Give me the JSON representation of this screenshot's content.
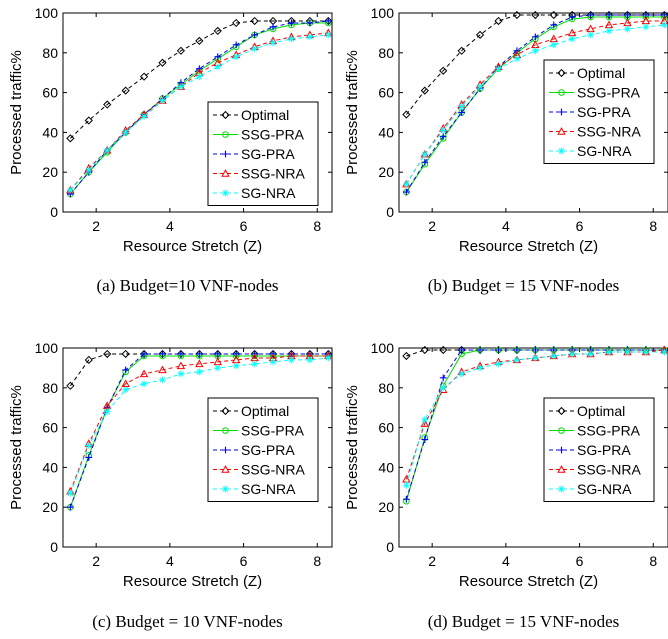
{
  "colors": {
    "optimal": "#000000",
    "ssg_pra": "#00dd00",
    "sg_pra": "#0000ff",
    "ssg_nra": "#ff0000",
    "sg_nra": "#00ffff"
  },
  "chart_data": [
    {
      "type": "line",
      "caption": "(a) Budget=10 VNF-nodes",
      "xlabel": "Resource Stretch (Z)",
      "ylabel": "Processed traffic%",
      "xlim": [
        1.1,
        8.4
      ],
      "ylim": [
        0,
        100
      ],
      "xticks": [
        2,
        4,
        6,
        8
      ],
      "yticks": [
        0,
        20,
        40,
        60,
        80,
        100
      ],
      "grid": false,
      "legend": "bottom-right",
      "x": [
        1.3,
        1.8,
        2.3,
        2.8,
        3.3,
        3.8,
        4.3,
        4.8,
        5.3,
        5.8,
        6.3,
        6.8,
        7.3,
        7.8,
        8.3
      ],
      "series": [
        {
          "name": "Optimal",
          "marker": "diamond",
          "values": [
            37,
            46,
            54,
            61,
            68,
            75,
            81,
            86,
            91,
            95,
            96,
            96,
            96,
            96,
            96
          ]
        },
        {
          "name": "SSG-PRA",
          "marker": "circle",
          "values": [
            9,
            20,
            30,
            40,
            49,
            57,
            64,
            71,
            77,
            83,
            89,
            92,
            94,
            95,
            95
          ]
        },
        {
          "name": "SG-PRA",
          "marker": "plus",
          "values": [
            9,
            20,
            31,
            40,
            49,
            57,
            65,
            72,
            78,
            84,
            89,
            93,
            95,
            95,
            96
          ]
        },
        {
          "name": "SSG-NRA",
          "marker": "triangle",
          "values": [
            11,
            22,
            31,
            41,
            49,
            56,
            63,
            70,
            75,
            79,
            83,
            86,
            88,
            89,
            90
          ]
        },
        {
          "name": "SG-NRA",
          "marker": "star",
          "values": [
            11,
            21,
            31,
            40,
            48,
            56,
            63,
            68,
            73,
            78,
            82,
            85,
            87,
            88,
            89
          ]
        }
      ]
    },
    {
      "type": "line",
      "caption": "(b) Budget = 15 VNF-nodes",
      "xlabel": "Resource Stretch (Z)",
      "ylabel": "Processed traffic%",
      "xlim": [
        1.1,
        8.4
      ],
      "ylim": [
        0,
        100
      ],
      "xticks": [
        2,
        4,
        6,
        8
      ],
      "yticks": [
        0,
        20,
        40,
        60,
        80,
        100
      ],
      "grid": false,
      "legend": "top-right",
      "x": [
        1.3,
        1.8,
        2.3,
        2.8,
        3.3,
        3.8,
        4.3,
        4.8,
        5.3,
        5.8,
        6.3,
        6.8,
        7.3,
        7.8,
        8.3
      ],
      "series": [
        {
          "name": "Optimal",
          "marker": "diamond",
          "values": [
            49,
            61,
            71,
            81,
            89,
            96,
            99,
            99,
            99,
            99,
            99,
            99,
            99,
            99,
            99
          ]
        },
        {
          "name": "SSG-PRA",
          "marker": "circle",
          "values": [
            10,
            24,
            37,
            50,
            62,
            72,
            80,
            87,
            93,
            97,
            98,
            98,
            98,
            98,
            98
          ]
        },
        {
          "name": "SG-PRA",
          "marker": "plus",
          "values": [
            10,
            25,
            38,
            50,
            62,
            73,
            81,
            88,
            94,
            98,
            99,
            99,
            99,
            99,
            99
          ]
        },
        {
          "name": "SSG-NRA",
          "marker": "triangle",
          "values": [
            14,
            29,
            42,
            54,
            64,
            73,
            79,
            84,
            87,
            90,
            92,
            94,
            95,
            96,
            96
          ]
        },
        {
          "name": "SG-NRA",
          "marker": "star",
          "values": [
            14,
            29,
            41,
            53,
            63,
            72,
            77,
            81,
            84,
            87,
            89,
            91,
            92,
            93,
            94
          ]
        }
      ]
    },
    {
      "type": "line",
      "caption": "(c) Budget = 10 VNF-nodes",
      "xlabel": "Resource Stretch (Z)",
      "ylabel": "Processed traffic%",
      "xlim": [
        1.1,
        8.4
      ],
      "ylim": [
        0,
        100
      ],
      "xticks": [
        2,
        4,
        6,
        8
      ],
      "yticks": [
        0,
        20,
        40,
        60,
        80,
        100
      ],
      "grid": false,
      "legend": "right",
      "x": [
        1.3,
        1.8,
        2.3,
        2.8,
        3.3,
        3.8,
        4.3,
        4.8,
        5.3,
        5.8,
        6.3,
        6.8,
        7.3,
        7.8,
        8.3
      ],
      "series": [
        {
          "name": "Optimal",
          "marker": "diamond",
          "values": [
            81,
            94,
            97,
            97,
            97,
            97,
            97,
            97,
            97,
            97,
            97,
            97,
            97,
            97,
            97
          ]
        },
        {
          "name": "SSG-PRA",
          "marker": "circle",
          "values": [
            20,
            46,
            70,
            88,
            96,
            96,
            96,
            96,
            96,
            96,
            96,
            96,
            96,
            96,
            96
          ]
        },
        {
          "name": "SG-PRA",
          "marker": "plus",
          "values": [
            20,
            45,
            70,
            89,
            97,
            97,
            97,
            97,
            97,
            97,
            97,
            97,
            97,
            97,
            97
          ]
        },
        {
          "name": "SSG-NRA",
          "marker": "triangle",
          "values": [
            28,
            52,
            71,
            82,
            87,
            89,
            91,
            92,
            93,
            94,
            95,
            95,
            96,
            96,
            96
          ]
        },
        {
          "name": "SG-NRA",
          "marker": "star",
          "values": [
            27,
            51,
            68,
            79,
            82,
            84,
            87,
            88,
            90,
            91,
            92,
            93,
            94,
            94,
            95
          ]
        }
      ]
    },
    {
      "type": "line",
      "caption": "(d) Budget = 15 VNF-nodes",
      "xlabel": "Resource Stretch (Z)",
      "ylabel": "Processed traffic%",
      "xlim": [
        1.1,
        8.4
      ],
      "ylim": [
        0,
        100
      ],
      "xticks": [
        2,
        4,
        6,
        8
      ],
      "yticks": [
        0,
        20,
        40,
        60,
        80,
        100
      ],
      "grid": false,
      "legend": "right",
      "x": [
        1.3,
        1.8,
        2.3,
        2.8,
        3.3,
        3.8,
        4.3,
        4.8,
        5.3,
        5.8,
        6.3,
        6.8,
        7.3,
        7.8,
        8.3
      ],
      "series": [
        {
          "name": "Optimal",
          "marker": "diamond",
          "values": [
            96,
            99,
            99,
            99,
            99,
            99,
            99,
            99,
            99,
            99,
            99,
            99,
            99,
            99,
            99
          ]
        },
        {
          "name": "SSG-PRA",
          "marker": "circle",
          "values": [
            23,
            55,
            81,
            97,
            99,
            99,
            99,
            99,
            99,
            99,
            99,
            99,
            99,
            99,
            99
          ]
        },
        {
          "name": "SG-PRA",
          "marker": "plus",
          "values": [
            24,
            54,
            85,
            99,
            99,
            99,
            99,
            99,
            99,
            99,
            99,
            99,
            99,
            99,
            99
          ]
        },
        {
          "name": "SSG-NRA",
          "marker": "triangle",
          "values": [
            34,
            62,
            79,
            88,
            91,
            93,
            94,
            95,
            96,
            97,
            97,
            98,
            98,
            98,
            99
          ]
        },
        {
          "name": "SG-NRA",
          "marker": "star",
          "values": [
            31,
            64,
            80,
            87,
            90,
            92,
            94,
            95,
            96,
            97,
            97,
            98,
            98,
            98,
            98
          ]
        }
      ]
    }
  ]
}
